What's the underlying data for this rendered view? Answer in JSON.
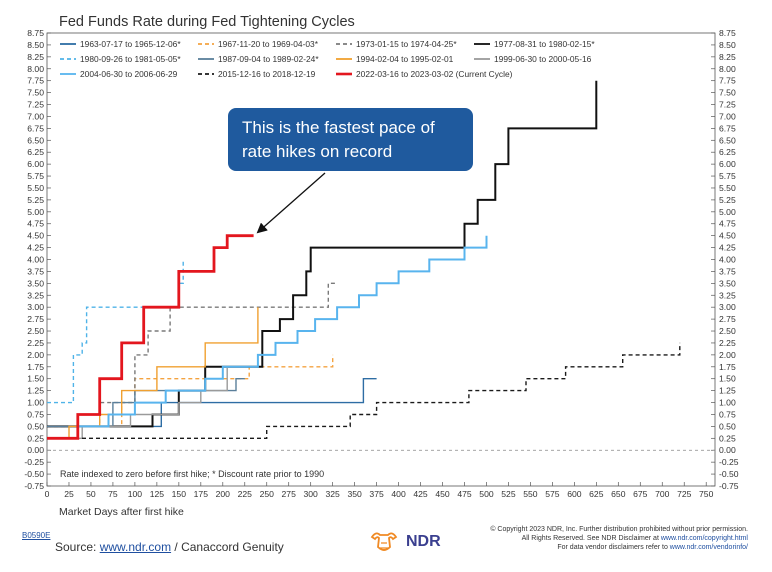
{
  "chart_data": {
    "type": "line",
    "title": "Fed Funds Rate during Fed Tightening Cycles",
    "xlabel": "Market Days after first hike",
    "ylabel": "",
    "xlim": [
      0,
      760
    ],
    "ylim": [
      -0.75,
      8.75
    ],
    "x_ticks": [
      "0",
      "25",
      "50",
      "75",
      "100",
      "125",
      "150",
      "175",
      "200",
      "225",
      "250",
      "275",
      "300",
      "325",
      "350",
      "375",
      "400",
      "425",
      "450",
      "475",
      "500",
      "525",
      "550",
      "575",
      "600",
      "625",
      "650",
      "675",
      "700",
      "725",
      "750"
    ],
    "y_ticks": [
      "8.75",
      "8.50",
      "8.25",
      "8.00",
      "7.75",
      "7.50",
      "7.25",
      "7.00",
      "6.75",
      "6.50",
      "6.25",
      "6.00",
      "5.75",
      "5.50",
      "5.25",
      "5.00",
      "4.75",
      "4.50",
      "4.25",
      "4.00",
      "3.75",
      "3.50",
      "3.25",
      "3.00",
      "2.75",
      "2.50",
      "2.25",
      "2.00",
      "1.75",
      "1.50",
      "1.25",
      "1.00",
      "0.75",
      "0.50",
      "0.25",
      "0.00",
      "-0.25",
      "-0.50",
      "-0.75"
    ],
    "grid": false,
    "legend_position": "top-left",
    "note": "Rate indexed to zero before first hike; * Discount rate prior to 1990",
    "series": [
      {
        "name": "1963-07-17 to 1965-12-06*",
        "color": "#2e6da4",
        "dash": "solid",
        "points": [
          [
            0,
            0.5
          ],
          [
            130,
            0.5
          ],
          [
            130,
            1.0
          ],
          [
            360,
            1.0
          ],
          [
            360,
            1.5
          ],
          [
            375,
            1.5
          ]
        ]
      },
      {
        "name": "1967-11-20 to 1969-04-03*",
        "color": "#f4a340",
        "dash": "dashed",
        "points": [
          [
            0,
            0.5
          ],
          [
            85,
            0.5
          ],
          [
            85,
            1.0
          ],
          [
            100,
            1.0
          ],
          [
            100,
            1.5
          ],
          [
            230,
            1.5
          ],
          [
            230,
            1.75
          ],
          [
            325,
            1.75
          ],
          [
            325,
            2.0
          ]
        ]
      },
      {
        "name": "1973-01-15 to 1974-04-25*",
        "color": "#7a7a7a",
        "dash": "dashed",
        "points": [
          [
            0,
            0.5
          ],
          [
            60,
            0.5
          ],
          [
            60,
            1.0
          ],
          [
            100,
            1.0
          ],
          [
            100,
            2.0
          ],
          [
            115,
            2.0
          ],
          [
            115,
            2.5
          ],
          [
            140,
            2.5
          ],
          [
            140,
            3.0
          ],
          [
            320,
            3.0
          ],
          [
            320,
            3.5
          ],
          [
            330,
            3.5
          ]
        ]
      },
      {
        "name": "1977-08-31 to 1980-02-15*",
        "color": "#111111",
        "dash": "solid",
        "points": [
          [
            0,
            0.5
          ],
          [
            120,
            0.5
          ],
          [
            120,
            0.75
          ],
          [
            150,
            0.75
          ],
          [
            150,
            1.25
          ],
          [
            180,
            1.25
          ],
          [
            180,
            1.75
          ],
          [
            245,
            1.75
          ],
          [
            245,
            2.5
          ],
          [
            265,
            2.5
          ],
          [
            265,
            2.75
          ],
          [
            280,
            2.75
          ],
          [
            280,
            3.25
          ],
          [
            295,
            3.25
          ],
          [
            295,
            3.75
          ],
          [
            300,
            3.75
          ],
          [
            300,
            4.25
          ],
          [
            475,
            4.25
          ],
          [
            475,
            4.75
          ],
          [
            490,
            4.75
          ],
          [
            490,
            5.25
          ],
          [
            510,
            5.25
          ],
          [
            510,
            6.0
          ],
          [
            525,
            6.0
          ],
          [
            525,
            6.75
          ],
          [
            625,
            6.75
          ],
          [
            625,
            7.75
          ]
        ]
      },
      {
        "name": "1980-09-26 to 1981-05-05*",
        "color": "#4fb3e8",
        "dash": "dashed",
        "points": [
          [
            0,
            1.0
          ],
          [
            30,
            1.0
          ],
          [
            30,
            2.0
          ],
          [
            40,
            2.0
          ],
          [
            40,
            2.25
          ],
          [
            45,
            2.25
          ],
          [
            45,
            3.0
          ],
          [
            150,
            3.0
          ],
          [
            150,
            3.5
          ],
          [
            155,
            3.5
          ],
          [
            155,
            4.0
          ]
        ]
      },
      {
        "name": "1987-09-04 to 1989-02-24*",
        "color": "#5a7f9a",
        "dash": "solid",
        "points": [
          [
            0,
            0.5
          ],
          [
            75,
            0.5
          ],
          [
            75,
            1.0
          ],
          [
            100,
            1.0
          ],
          [
            100,
            1.25
          ],
          [
            215,
            1.25
          ],
          [
            215,
            1.5
          ],
          [
            225,
            1.5
          ]
        ]
      },
      {
        "name": "1994-02-04 to 1995-02-01",
        "color": "#f0a030",
        "dash": "solid",
        "points": [
          [
            0,
            0.25
          ],
          [
            25,
            0.25
          ],
          [
            25,
            0.5
          ],
          [
            60,
            0.5
          ],
          [
            60,
            0.75
          ],
          [
            85,
            0.75
          ],
          [
            85,
            1.25
          ],
          [
            125,
            1.25
          ],
          [
            125,
            1.75
          ],
          [
            180,
            1.75
          ],
          [
            180,
            2.25
          ],
          [
            240,
            2.25
          ],
          [
            240,
            3.0
          ]
        ]
      },
      {
        "name": "1999-06-30 to 2000-05-16",
        "color": "#9a9a9a",
        "dash": "solid",
        "points": [
          [
            0,
            0.25
          ],
          [
            40,
            0.25
          ],
          [
            40,
            0.5
          ],
          [
            95,
            0.5
          ],
          [
            95,
            0.75
          ],
          [
            150,
            0.75
          ],
          [
            150,
            1.0
          ],
          [
            175,
            1.0
          ],
          [
            175,
            1.25
          ],
          [
            205,
            1.25
          ],
          [
            205,
            1.75
          ],
          [
            215,
            1.75
          ]
        ]
      },
      {
        "name": "2004-06-30 to 2006-06-29",
        "color": "#58b4ee",
        "dash": "solid",
        "points": [
          [
            0,
            0.25
          ],
          [
            35,
            0.25
          ],
          [
            35,
            0.5
          ],
          [
            70,
            0.5
          ],
          [
            70,
            0.75
          ],
          [
            100,
            0.75
          ],
          [
            100,
            1.0
          ],
          [
            135,
            1.0
          ],
          [
            135,
            1.25
          ],
          [
            180,
            1.25
          ],
          [
            180,
            1.5
          ],
          [
            200,
            1.5
          ],
          [
            200,
            1.75
          ],
          [
            240,
            1.75
          ],
          [
            240,
            2.0
          ],
          [
            260,
            2.0
          ],
          [
            260,
            2.25
          ],
          [
            285,
            2.25
          ],
          [
            285,
            2.5
          ],
          [
            305,
            2.5
          ],
          [
            305,
            2.75
          ],
          [
            330,
            2.75
          ],
          [
            330,
            3.0
          ],
          [
            355,
            3.0
          ],
          [
            355,
            3.25
          ],
          [
            375,
            3.25
          ],
          [
            375,
            3.5
          ],
          [
            400,
            3.5
          ],
          [
            400,
            3.75
          ],
          [
            435,
            3.75
          ],
          [
            435,
            4.0
          ],
          [
            475,
            4.0
          ],
          [
            475,
            4.25
          ],
          [
            500,
            4.25
          ],
          [
            500,
            4.5
          ]
        ]
      },
      {
        "name": "2015-12-16 to 2018-12-19",
        "color": "#1a1a1a",
        "dash": "dashed",
        "points": [
          [
            0,
            0.25
          ],
          [
            250,
            0.25
          ],
          [
            250,
            0.5
          ],
          [
            345,
            0.5
          ],
          [
            345,
            0.75
          ],
          [
            375,
            0.75
          ],
          [
            375,
            1.0
          ],
          [
            480,
            1.0
          ],
          [
            480,
            1.25
          ],
          [
            545,
            1.25
          ],
          [
            545,
            1.5
          ],
          [
            590,
            1.5
          ],
          [
            590,
            1.75
          ],
          [
            655,
            1.75
          ],
          [
            655,
            2.0
          ],
          [
            720,
            2.0
          ],
          [
            720,
            2.25
          ]
        ]
      },
      {
        "name": "2022-03-16 to 2023-03-02 (Current Cycle)",
        "color": "#e3161e",
        "dash": "solid",
        "points": [
          [
            0,
            0.25
          ],
          [
            35,
            0.25
          ],
          [
            35,
            0.75
          ],
          [
            60,
            0.75
          ],
          [
            60,
            1.5
          ],
          [
            85,
            1.5
          ],
          [
            85,
            2.25
          ],
          [
            110,
            2.25
          ],
          [
            110,
            3.0
          ],
          [
            150,
            3.0
          ],
          [
            150,
            3.75
          ],
          [
            190,
            3.75
          ],
          [
            190,
            4.25
          ],
          [
            205,
            4.25
          ],
          [
            205,
            4.5
          ],
          [
            235,
            4.5
          ]
        ]
      }
    ],
    "annotation": {
      "lines": [
        "This is the fastest pace of",
        "rate hikes on record"
      ],
      "bg": "#1f5a9e",
      "arrow_to": [
        235,
        4.5
      ]
    }
  },
  "footer": {
    "code": "B0590E",
    "source_prefix": "Source: ",
    "source_link": "www.ndr.com",
    "source_suffix": " / Canaccord Genuity",
    "logo_text": "NDR",
    "copyright_line1": "© Copyright 2023 NDR, Inc. Further distribution prohibited without prior permission.",
    "copyright_line2_prefix": "All Rights Reserved. See NDR Disclaimer at ",
    "copyright_line2_link": "www.ndr.com/copyright.html",
    "copyright_line3_prefix": "For data vendor disclaimers refer to ",
    "copyright_line3_link": "www.ndr.com/vendorinfo/"
  }
}
